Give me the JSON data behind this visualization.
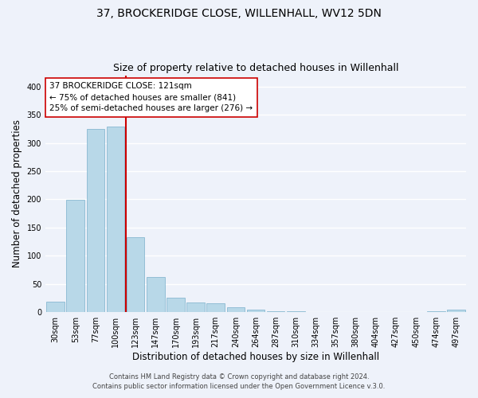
{
  "title": "37, BROCKERIDGE CLOSE, WILLENHALL, WV12 5DN",
  "subtitle": "Size of property relative to detached houses in Willenhall",
  "xlabel": "Distribution of detached houses by size in Willenhall",
  "ylabel": "Number of detached properties",
  "bar_labels": [
    "30sqm",
    "53sqm",
    "77sqm",
    "100sqm",
    "123sqm",
    "147sqm",
    "170sqm",
    "193sqm",
    "217sqm",
    "240sqm",
    "264sqm",
    "287sqm",
    "310sqm",
    "334sqm",
    "357sqm",
    "380sqm",
    "404sqm",
    "427sqm",
    "450sqm",
    "474sqm",
    "497sqm"
  ],
  "bar_values": [
    19,
    199,
    325,
    329,
    133,
    62,
    25,
    17,
    16,
    9,
    4,
    1,
    1,
    0,
    0,
    0,
    0,
    0,
    0,
    1,
    4
  ],
  "bar_color": "#b8d8e8",
  "bar_edge_color": "#7ab0cc",
  "highlight_line_color": "#cc0000",
  "annotation_text": "37 BROCKERIDGE CLOSE: 121sqm\n← 75% of detached houses are smaller (841)\n25% of semi-detached houses are larger (276) →",
  "annotation_box_color": "#ffffff",
  "annotation_box_edge": "#cc0000",
  "ylim": [
    0,
    420
  ],
  "yticks": [
    0,
    50,
    100,
    150,
    200,
    250,
    300,
    350,
    400
  ],
  "footer_line1": "Contains HM Land Registry data © Crown copyright and database right 2024.",
  "footer_line2": "Contains public sector information licensed under the Open Government Licence v.3.0.",
  "background_color": "#eef2fa",
  "grid_color": "#ffffff",
  "title_fontsize": 10,
  "subtitle_fontsize": 9,
  "tick_fontsize": 7,
  "ylabel_fontsize": 8.5,
  "xlabel_fontsize": 8.5,
  "annotation_fontsize": 7.5,
  "footer_fontsize": 6
}
